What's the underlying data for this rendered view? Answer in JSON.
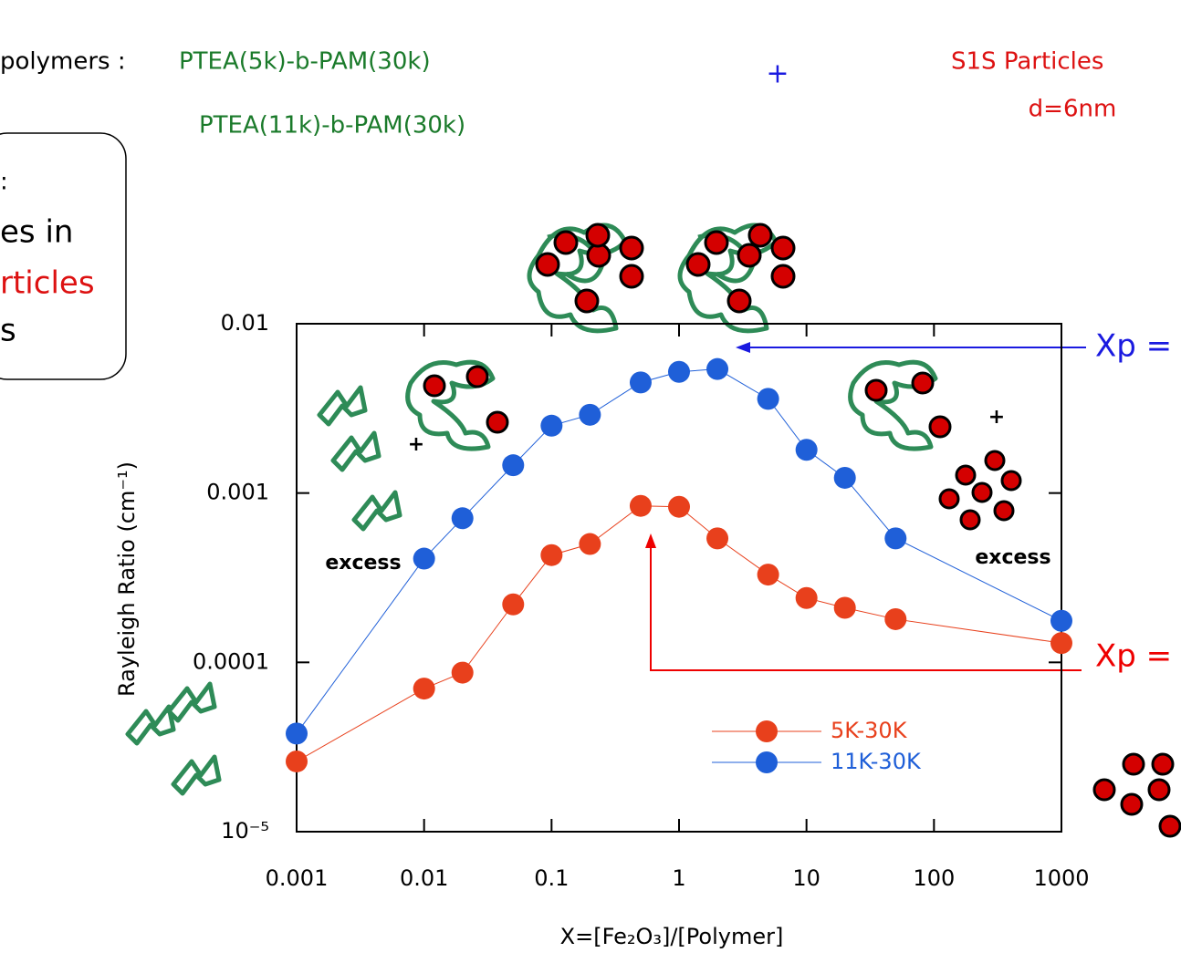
{
  "chart_data": {
    "type": "line",
    "x_label": "X=[Fe₂O₃]/[Polymer]",
    "y_label": "Rayleigh Ratio (cm⁻¹)",
    "x": [
      0.001,
      0.01,
      0.02,
      0.05,
      0.1,
      0.2,
      0.5,
      1,
      2,
      5,
      10,
      20,
      50,
      1000
    ],
    "series": [
      {
        "name": "5K-30K",
        "color": "#e8401c",
        "values": [
          2.6e-05,
          7e-05,
          8.7e-05,
          0.00022,
          0.00043,
          0.0005,
          0.00084,
          0.00083,
          0.00054,
          0.00033,
          0.00024,
          0.00021,
          0.00018,
          0.00013
        ]
      },
      {
        "name": "11K-30K",
        "color": "#1f5fd8",
        "values": [
          3.8e-05,
          0.00041,
          0.00071,
          0.00146,
          0.0025,
          0.0029,
          0.0045,
          0.0052,
          0.0054,
          0.0036,
          0.0018,
          0.00123,
          0.00054,
          0.000176
        ]
      }
    ],
    "xscale": "log",
    "yscale": "log",
    "xlim": [
      0.001,
      1000
    ],
    "ylim": [
      1e-05,
      0.01
    ],
    "xticks": [
      0.001,
      0.01,
      0.1,
      1,
      10,
      100,
      1000
    ],
    "yticks": [
      {
        "value": 1e-05,
        "label": "10⁻⁵"
      },
      0.0001,
      0.001,
      0.01
    ],
    "legend": "lower right",
    "annotations": [
      "polymers : ",
      "PTEA(5k)-b-PAM(30k)",
      "PTEA(11k)-b-PAM(30k)",
      "+",
      "S1S Particles",
      "d=6nm",
      ":",
      "es in",
      "rticles",
      "s",
      "Xp =",
      "Xp =",
      "excess",
      "excess",
      "+",
      "+"
    ]
  }
}
